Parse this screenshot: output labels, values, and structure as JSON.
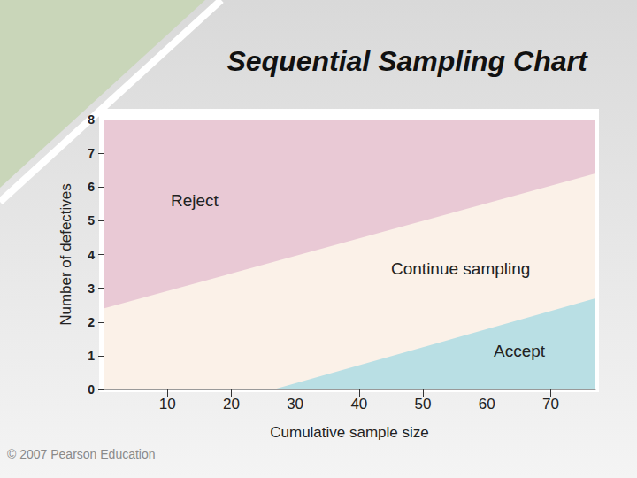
{
  "chart_data": {
    "type": "area",
    "title": "Sequential Sampling Chart",
    "x_label": "Cumulative sample size",
    "y_label": "Number of defectives",
    "xlim": [
      0,
      77
    ],
    "xticks": [
      10,
      20,
      30,
      40,
      50,
      60,
      70
    ],
    "ylim": [
      0,
      8
    ],
    "yticks": [
      0,
      1,
      2,
      3,
      4,
      5,
      6,
      7,
      8
    ],
    "grid": false,
    "series": [
      {
        "color": "#e9c9d5",
        "x": [
          0,
          77
        ],
        "values": [
          2.4,
          6.4
        ]
      },
      {
        "color": "#b9dfe4",
        "x": [
          26.6,
          77
        ],
        "values": [
          0,
          2.7
        ]
      }
    ],
    "annotations": [
      "Reject",
      "Continue sampling",
      "Accept",
      "© 2007 Pearson Education"
    ]
  }
}
